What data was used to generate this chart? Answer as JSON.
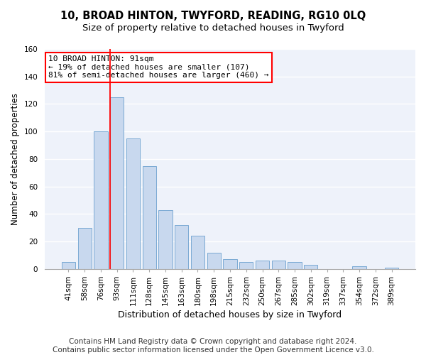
{
  "title": "10, BROAD HINTON, TWYFORD, READING, RG10 0LQ",
  "subtitle": "Size of property relative to detached houses in Twyford",
  "xlabel": "Distribution of detached houses by size in Twyford",
  "ylabel": "Number of detached properties",
  "bar_color": "#c8d8ee",
  "bar_edge_color": "#7baad4",
  "categories": [
    "41sqm",
    "58sqm",
    "76sqm",
    "93sqm",
    "111sqm",
    "128sqm",
    "145sqm",
    "163sqm",
    "180sqm",
    "198sqm",
    "215sqm",
    "232sqm",
    "250sqm",
    "267sqm",
    "285sqm",
    "302sqm",
    "319sqm",
    "337sqm",
    "354sqm",
    "372sqm",
    "389sqm"
  ],
  "values": [
    5,
    30,
    100,
    125,
    95,
    75,
    43,
    32,
    24,
    12,
    7,
    5,
    6,
    6,
    5,
    3,
    0,
    0,
    2,
    0,
    1
  ],
  "ylim": [
    0,
    160
  ],
  "yticks": [
    0,
    20,
    40,
    60,
    80,
    100,
    120,
    140,
    160
  ],
  "red_line_index": 3,
  "annotation_title": "10 BROAD HINTON: 91sqm",
  "annotation_line1": "← 19% of detached houses are smaller (107)",
  "annotation_line2": "81% of semi-detached houses are larger (460) →",
  "footer1": "Contains HM Land Registry data © Crown copyright and database right 2024.",
  "footer2": "Contains public sector information licensed under the Open Government Licence v3.0.",
  "background_color": "#ffffff",
  "plot_background": "#eef2fa",
  "grid_color": "#ffffff",
  "title_fontsize": 10.5,
  "subtitle_fontsize": 9.5,
  "xlabel_fontsize": 9,
  "ylabel_fontsize": 8.5,
  "tick_fontsize": 7.5,
  "footer_fontsize": 7.5
}
